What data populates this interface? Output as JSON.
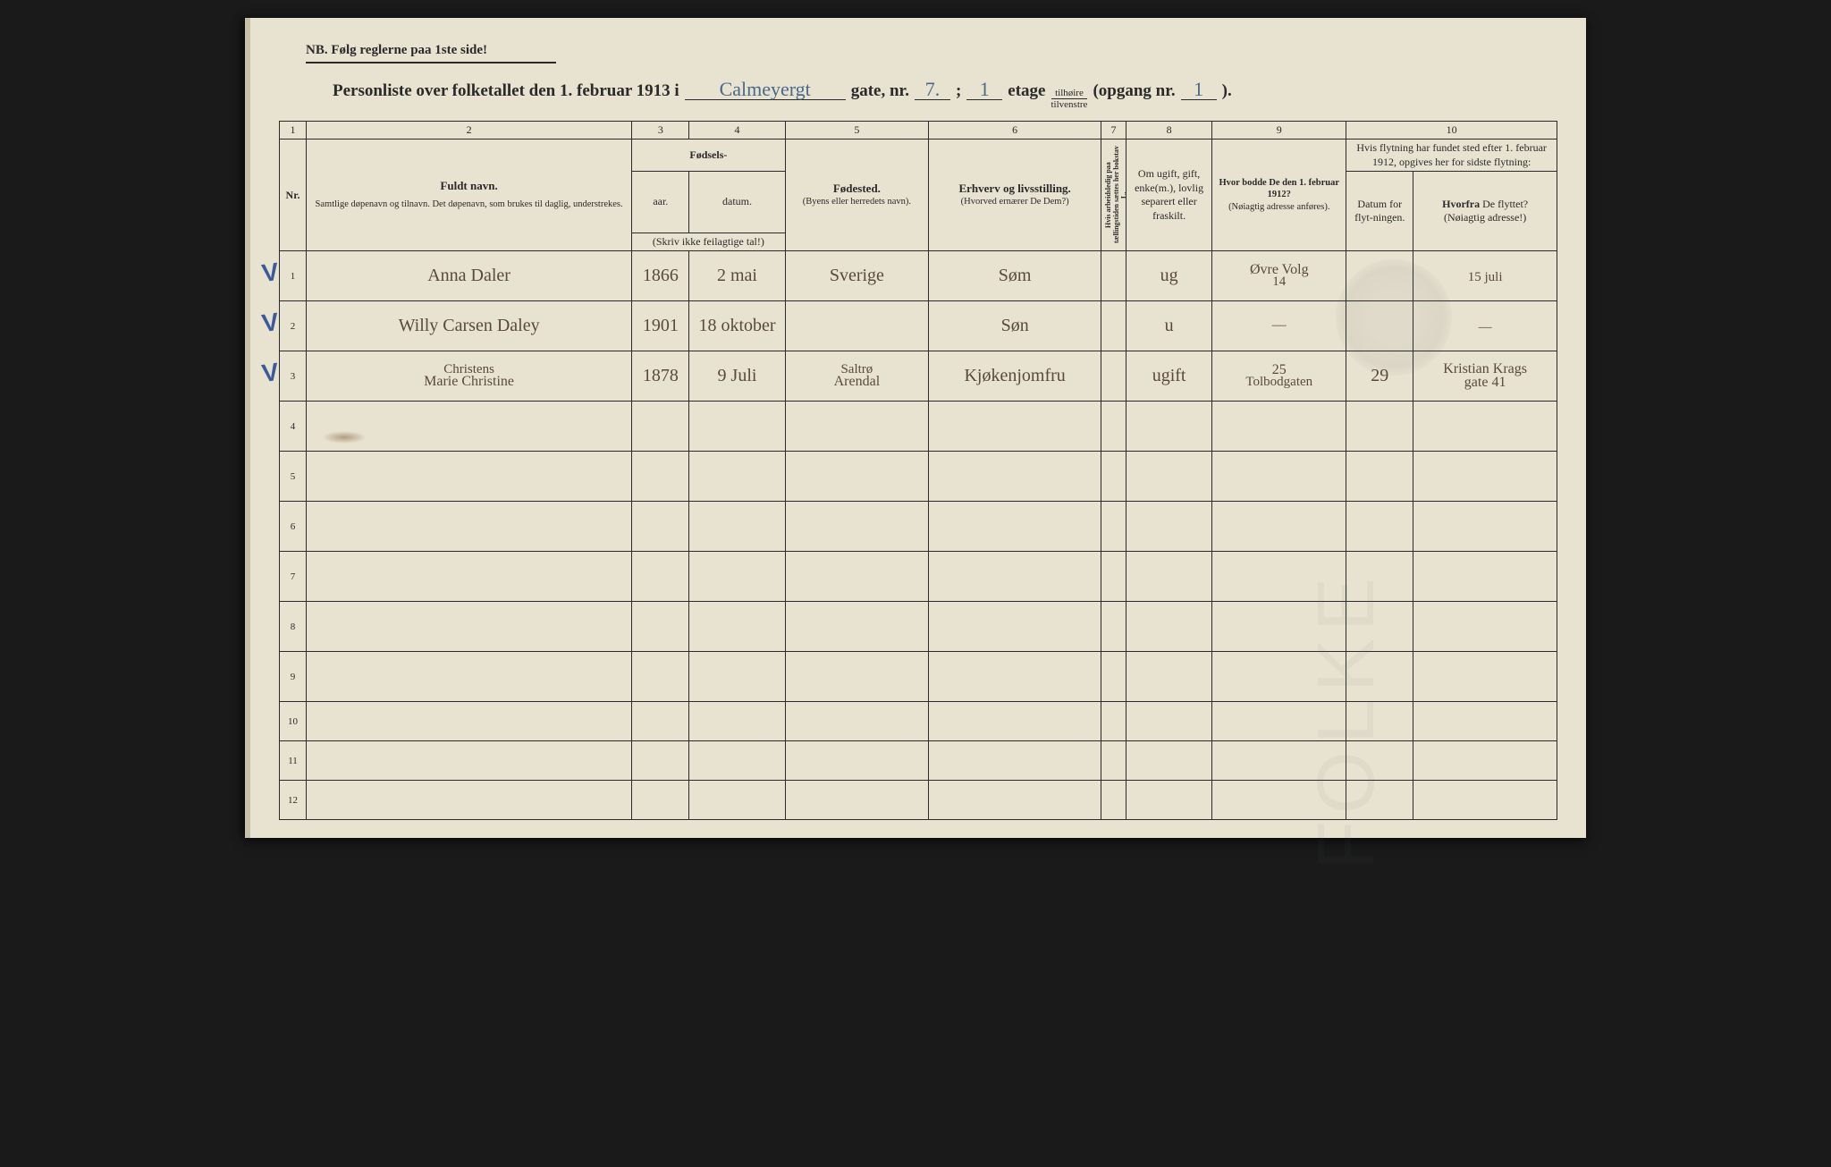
{
  "page": {
    "background_color": "#e8e2d0",
    "ink_color": "#2a2a2a",
    "handwriting_color": "#5a4a3a",
    "blue_pencil_color": "#3a5a9a"
  },
  "header": {
    "nb": "NB.  Følg reglerne paa 1ste side!",
    "title_prefix": "Personliste over folketallet den 1. februar 1913 i",
    "street_written": "Calmeyergt",
    "gate_label": "gate, nr.",
    "gate_nr": "7.",
    "semicolon": ";",
    "etage_nr": "1",
    "etage_label": "etage",
    "frac_top": "tilhøire",
    "frac_bot": "tilvenstre",
    "opgang_label": "(opgang nr.",
    "opgang_nr": "1",
    "close": ")."
  },
  "columns": {
    "numbers": [
      "1",
      "2",
      "3",
      "4",
      "5",
      "6",
      "7",
      "8",
      "9",
      "10"
    ],
    "c1": "Nr.",
    "c2_main": "Fuldt navn.",
    "c2_sub": "Samtlige døpenavn og tilnavn.  Det døpenavn, som brukes til daglig, understrekes.",
    "c34_group": "Fødsels-",
    "c3": "aar.",
    "c4": "datum.",
    "c34_note": "(Skriv ikke feilagtige tal!)",
    "c5_main": "Fødested.",
    "c5_sub": "(Byens eller herredets navn).",
    "c6_main": "Erhverv og livsstilling.",
    "c6_sub": "(Hvorved ernærer De Dem?)",
    "c7": "Hvis arbeidsledig paa tællingstiden sættes her bokstav L.",
    "c8": "Om ugift, gift, enke(m.), lovlig separert eller fraskilt.",
    "c9_main": "Hvor bodde De den 1. februar 1912?",
    "c9_sub": "(Nøiagtig adresse anføres).",
    "c10_top": "Hvis flytning har fundet sted efter 1. februar 1912, opgives her for sidste flytning:",
    "c10a": "Datum for flyt-ningen.",
    "c10b": "Hvorfra De flyttet? (Nøiagtig adresse!)"
  },
  "rows": [
    {
      "n": "1",
      "check": true,
      "name": "Anna Daler",
      "year": "1866",
      "date": "2 mai",
      "birthplace": "Sverige",
      "occupation": "Søm",
      "col7": "",
      "marital": "ug",
      "addr1912_top": "Øvre Volg",
      "addr1912_bot": "14",
      "move_date": "",
      "move_from": "15 juli"
    },
    {
      "n": "2",
      "check": true,
      "name": "Willy Carsen Daley",
      "year": "1901",
      "date": "18 oktober",
      "birthplace": "",
      "occupation": "Søn",
      "col7": "",
      "marital": "u",
      "addr1912_top": "—",
      "addr1912_bot": "",
      "move_date": "",
      "move_from": "—"
    },
    {
      "n": "3",
      "check": true,
      "name_top": "Christens",
      "name": "Marie Christine",
      "year": "1878",
      "date": "9 Juli",
      "birthplace_top": "Saltrø",
      "birthplace": "Arendal",
      "occupation": "Kjøkenjomfru",
      "col7": "",
      "marital": "ugift",
      "addr1912_top": "25",
      "addr1912_bot": "Tolbodgaten",
      "move_date": "29",
      "move_from_top": "Kristian Krags",
      "move_from": "gate 41"
    },
    {
      "n": "4"
    },
    {
      "n": "5"
    },
    {
      "n": "6"
    },
    {
      "n": "7"
    },
    {
      "n": "8"
    },
    {
      "n": "9"
    },
    {
      "n": "10"
    },
    {
      "n": "11"
    },
    {
      "n": "12"
    }
  ]
}
